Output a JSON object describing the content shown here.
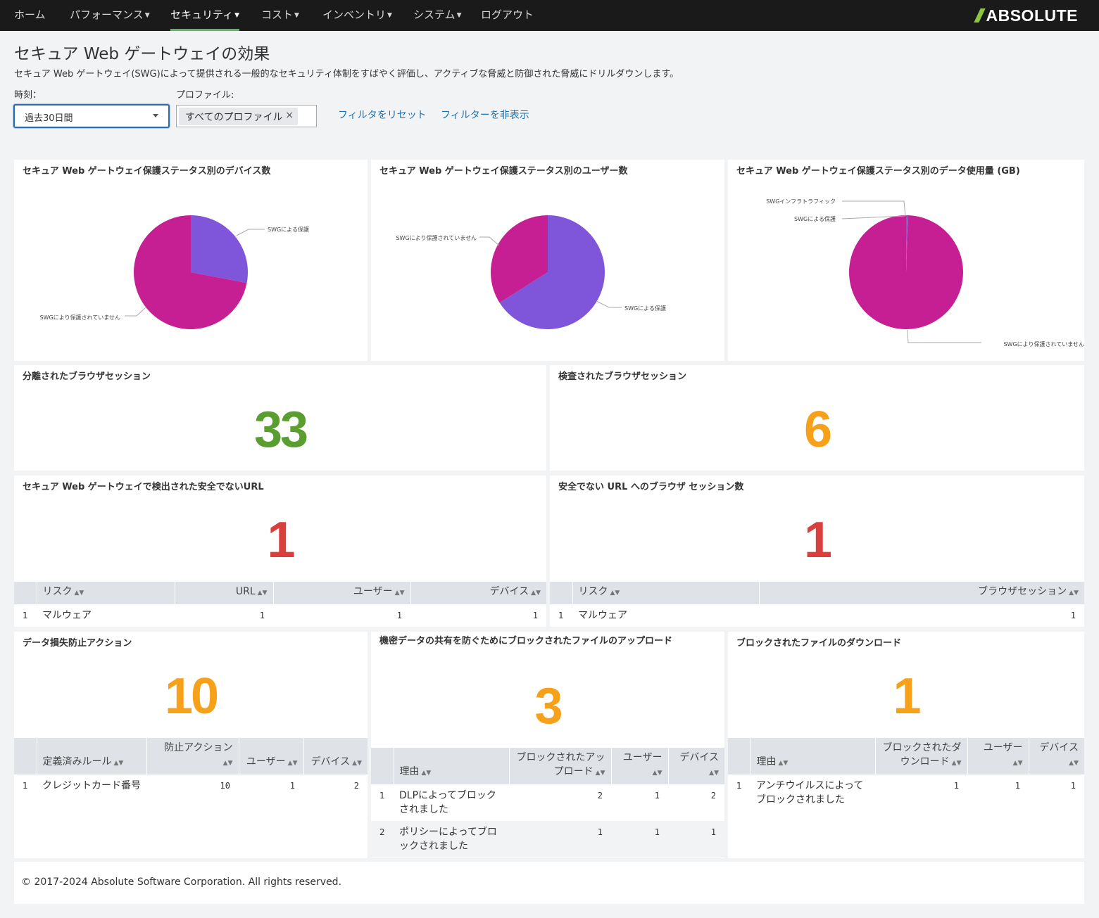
{
  "nav": {
    "items": [
      {
        "label": "ホーム",
        "caret": false
      },
      {
        "label": "パフォーマンス",
        "caret": true
      },
      {
        "label": "セキュリティ",
        "caret": true,
        "active": true
      },
      {
        "label": "コスト",
        "caret": true
      },
      {
        "label": "インベントリ",
        "caret": true
      },
      {
        "label": "システム",
        "caret": true
      },
      {
        "label": "ログアウト",
        "caret": false
      }
    ],
    "logo_text": "ABSOLUTE"
  },
  "header": {
    "title": "セキュア Web ゲートウェイの効果",
    "description": "セキュア Web ゲートウェイ(SWG)によって提供される一般的なセキュリティ体制をすばやく評価し、アクティブな脅威と防御された脅威にドリルダウンします。"
  },
  "filters": {
    "time_label": "時刻：",
    "time_value": "過去30日間",
    "profile_label": "プロファイル:",
    "profile_chip": "すべてのプロファイル",
    "reset_link": "フィルタをリセット",
    "hide_link": "フィルターを非表示"
  },
  "colors": {
    "purple": "#7f56d9",
    "magenta": "#c61f93",
    "teal": "#2a8f8a",
    "green": "#5a9e2f",
    "orange": "#f7a11a",
    "red": "#d93f3c"
  },
  "charts": {
    "devices": {
      "title": "セキュア Web ゲートウェイ保護ステータス別のデバイス数",
      "chart_data": {
        "type": "pie",
        "slices": [
          {
            "label": "SWGによる保護",
            "value": 28,
            "color": "#7f56d9"
          },
          {
            "label": "SWGにより保護されていません",
            "value": 72,
            "color": "#c61f93"
          }
        ]
      }
    },
    "users": {
      "title": "セキュア Web ゲートウェイ保護ステータス別のユーザー数",
      "chart_data": {
        "type": "pie",
        "slices": [
          {
            "label": "SWGによる保護",
            "value": 66,
            "color": "#7f56d9"
          },
          {
            "label": "SWGにより保護されていません",
            "value": 34,
            "color": "#c61f93"
          }
        ]
      }
    },
    "data": {
      "title": "セキュア Web ゲートウェイ保護ステータス別のデータ使用量 (GB)",
      "chart_data": {
        "type": "pie",
        "slices": [
          {
            "label": "SWGインフラトラフィック",
            "value": 0.3,
            "color": "#2a8f8a"
          },
          {
            "label": "SWGによる保護",
            "value": 0.2,
            "color": "#7f56d9"
          },
          {
            "label": "SWGにより保護されていません",
            "value": 99.5,
            "color": "#c61f93"
          }
        ]
      }
    }
  },
  "metrics": {
    "isolated": {
      "title": "分離されたブラウザセッション",
      "value": "33"
    },
    "inspected": {
      "title": "検査されたブラウザセッション",
      "value": "6"
    },
    "unsafe_urls": {
      "title": "セキュア Web ゲートウェイで検出された安全でないURL",
      "value": "1",
      "columns": [
        "リスク",
        "URL",
        "ユーザー",
        "デバイス"
      ],
      "rows": [
        {
          "idx": "1",
          "risk": "マルウェア",
          "url": "1",
          "users": "1",
          "devices": "1"
        }
      ]
    },
    "unsafe_sessions": {
      "title": "安全でない URL へのブラウザ セッション数",
      "value": "1",
      "columns": [
        "リスク",
        "ブラウザセッション"
      ],
      "rows": [
        {
          "idx": "1",
          "risk": "マルウェア",
          "sessions": "1"
        }
      ]
    },
    "dlp": {
      "title": "データ損失防止アクション",
      "value": "10",
      "columns": [
        "定義済みルール",
        "防止アクション",
        "ユーザー",
        "デバイス"
      ],
      "rows": [
        {
          "idx": "1",
          "rule": "クレジットカード番号",
          "actions": "10",
          "users": "1",
          "devices": "2"
        }
      ]
    },
    "uploads": {
      "title": "機密データの共有を防ぐためにブロックされたファイルのアップロード",
      "value": "3",
      "columns": [
        "理由",
        "ブロックされたアップロード",
        "ユーザー",
        "デバイス"
      ],
      "rows": [
        {
          "idx": "1",
          "reason": "DLPによってブロックされました",
          "blocked": "2",
          "users": "1",
          "devices": "2"
        },
        {
          "idx": "2",
          "reason": "ポリシーによってブロックされました",
          "blocked": "1",
          "users": "1",
          "devices": "1"
        }
      ]
    },
    "downloads": {
      "title": "ブロックされたファイルのダウンロード",
      "value": "1",
      "columns": [
        "理由",
        "ブロックされたダウンロード",
        "ユーザー",
        "デバイス"
      ],
      "rows": [
        {
          "idx": "1",
          "reason": "アンチウイルスによってブロックされました",
          "blocked": "1",
          "users": "1",
          "devices": "1"
        }
      ]
    }
  },
  "footer": {
    "text": "© 2017-2024 Absolute Software Corporation. All rights reserved."
  }
}
